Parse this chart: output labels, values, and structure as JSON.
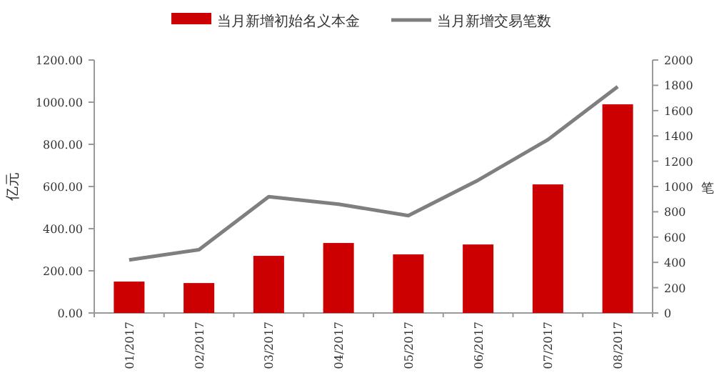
{
  "chart_data": {
    "type": "bar",
    "categories": [
      "01/2017",
      "02/2017",
      "03/2017",
      "04/2017",
      "05/2017",
      "06/2017",
      "07/2017",
      "08/2017"
    ],
    "series": [
      {
        "name": "当月新增初始名义本金",
        "color": "#cc0000",
        "values": [
          149,
          142,
          271,
          332,
          278,
          325,
          610,
          990
        ]
      },
      {
        "name": "当月新增交易笔数",
        "color": "#7f7f7f",
        "type": "line",
        "axis": "y2",
        "values": [
          420,
          500,
          920,
          860,
          770,
          1050,
          1370,
          1790
        ]
      }
    ],
    "ylabel": "亿元",
    "y2label": "笔",
    "ylim": [
      0,
      1200
    ],
    "yticks": [
      {
        "value": 0,
        "label": "0.00"
      },
      {
        "value": 200,
        "label": "200.00"
      },
      {
        "value": 400,
        "label": "400.00"
      },
      {
        "value": 600,
        "label": "600.00"
      },
      {
        "value": 800,
        "label": "800.00"
      },
      {
        "value": 1000,
        "label": "1000.00"
      },
      {
        "value": 1200,
        "label": "1200.00"
      }
    ],
    "y2lim": [
      0,
      2000
    ],
    "y2ticks": [
      0,
      200,
      400,
      600,
      800,
      1000,
      1200,
      1400,
      1600,
      1800,
      2000
    ],
    "legend": "top",
    "grid": false
  }
}
